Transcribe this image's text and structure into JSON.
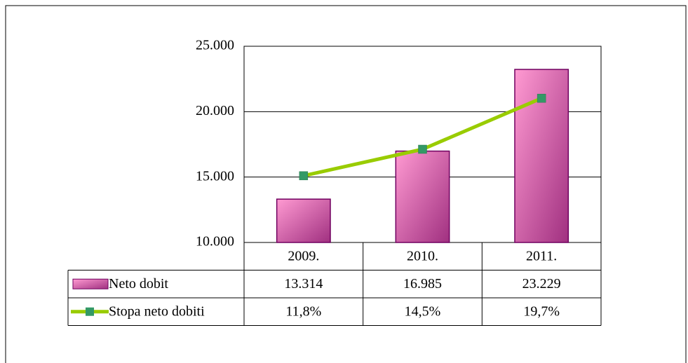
{
  "chart_data": {
    "type": "bar",
    "categories": [
      "2009.",
      "2010.",
      "2011."
    ],
    "series": [
      {
        "name": "Neto dobit",
        "type": "bar",
        "color": "#e070b8",
        "values": [
          13314,
          16985,
          23229
        ],
        "value_labels": [
          "13.314",
          "16.985",
          "23.229"
        ]
      },
      {
        "name": "Stopa neto dobiti",
        "type": "line",
        "axis": "y2",
        "color": "#99cc00",
        "marker_color": "#339966",
        "values": [
          11.8,
          14.5,
          19.7
        ],
        "value_labels": [
          "11,8%",
          "14,5%",
          "19,7%"
        ]
      }
    ],
    "ylim": [
      10000,
      25000
    ],
    "yticks": [
      {
        "value": 10000,
        "label": "10.000"
      },
      {
        "value": 15000,
        "label": "15.000"
      },
      {
        "value": 20000,
        "label": "20.000"
      },
      {
        "value": 25000,
        "label": "25.000"
      }
    ],
    "y2lim": [
      5,
      25
    ],
    "grid": true,
    "data_table": true
  }
}
